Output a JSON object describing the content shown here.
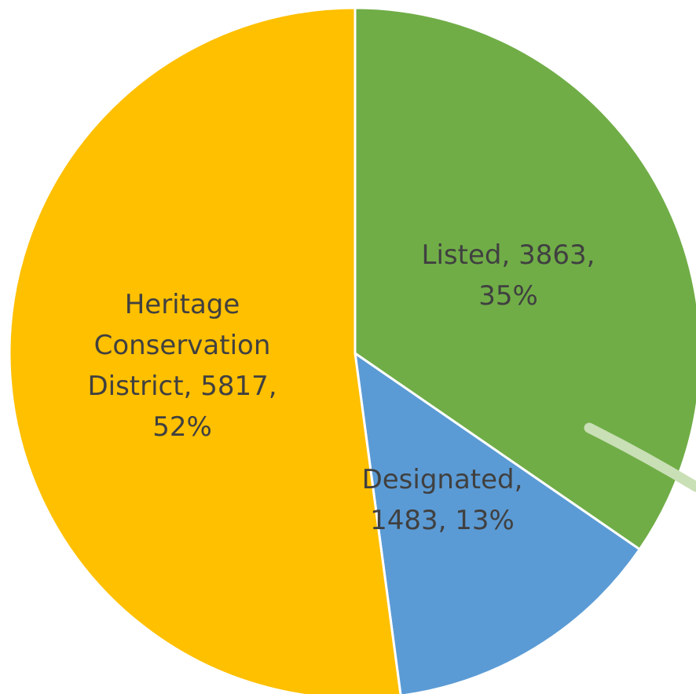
{
  "chart_data": {
    "type": "pie",
    "categories": [
      "Listed",
      "Designated",
      "Heritage Conservation District"
    ],
    "values": [
      3863,
      1483,
      5817
    ],
    "percents": [
      "35%",
      "13%",
      "52%"
    ],
    "colors": [
      "#70ad47",
      "#5b9bd5",
      "#ffc000"
    ],
    "data_labels": [
      [
        "Listed, 3863,",
        "35%"
      ],
      [
        "Designated,",
        "1483, 13%"
      ],
      [
        "Heritage",
        "Conservation",
        "District, 5817,",
        "52%"
      ]
    ],
    "start_angle": "12 o'clock",
    "direction": "clockwise",
    "legend": "none",
    "title": ""
  }
}
